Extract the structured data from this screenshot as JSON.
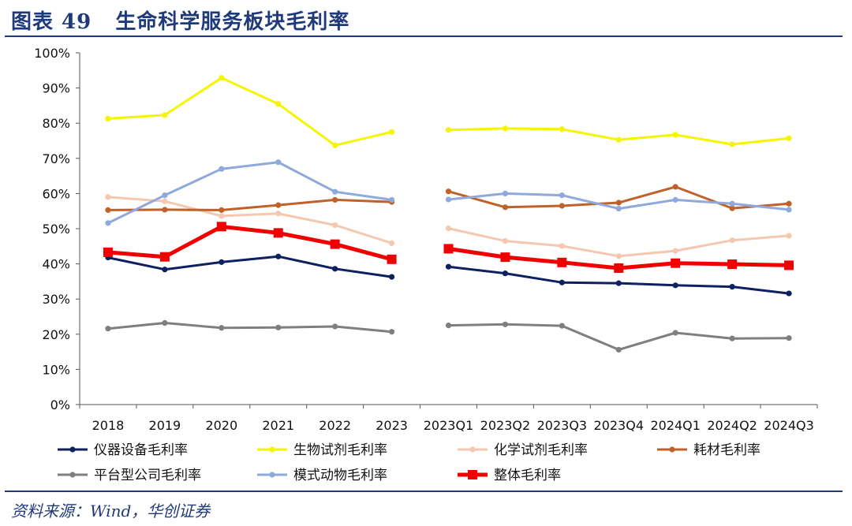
{
  "header": {
    "title": "图表 49   生命科学服务板块毛利率"
  },
  "footer": {
    "source": "资料来源：Wind，华创证券"
  },
  "colors": {
    "title": "#1f3a7a",
    "axis": "#555555",
    "text": "#111111"
  },
  "chart_data": {
    "type": "line",
    "title": "",
    "xlabel": "",
    "ylabel": "",
    "categories": [
      "2018",
      "2019",
      "2020",
      "2021",
      "2022",
      "2023",
      "2023Q1",
      "2023Q2",
      "2023Q3",
      "2023Q4",
      "2024Q1",
      "2024Q2",
      "2024Q3"
    ],
    "ylim": [
      0,
      100
    ],
    "yticks": [
      0,
      10,
      20,
      30,
      40,
      50,
      60,
      70,
      80,
      90,
      100
    ],
    "ytick_labels": [
      "0%",
      "10%",
      "20%",
      "30%",
      "40%",
      "50%",
      "60%",
      "70%",
      "80%",
      "90%",
      "100%"
    ],
    "y_unit": "%",
    "grid": false,
    "legend_position": "bottom",
    "series_gap_after_category": "2023",
    "series": [
      {
        "name": "仪器设备毛利率",
        "color": "#0d2060",
        "marker": "circle",
        "emphasis": false,
        "values": [
          41.8,
          38.4,
          40.5,
          42.1,
          38.6,
          36.3,
          39.2,
          37.3,
          34.7,
          34.5,
          33.9,
          33.5,
          31.6
        ]
      },
      {
        "name": "生物试剂毛利率",
        "color": "#f5f500",
        "marker": "circle",
        "emphasis": false,
        "values": [
          81.3,
          82.3,
          92.9,
          85.5,
          73.7,
          77.5,
          78.1,
          78.5,
          78.3,
          75.3,
          76.7,
          74.0,
          75.7
        ]
      },
      {
        "name": "化学试剂毛利率",
        "color": "#f4c7ae",
        "marker": "circle",
        "emphasis": false,
        "values": [
          59.0,
          57.8,
          53.6,
          54.3,
          51.0,
          45.9,
          50.1,
          46.5,
          45.1,
          42.2,
          43.7,
          46.7,
          48.0
        ]
      },
      {
        "name": "耗材毛利率",
        "color": "#c0612a",
        "marker": "circle",
        "emphasis": false,
        "values": [
          55.3,
          55.4,
          55.3,
          56.7,
          58.2,
          57.6,
          60.6,
          56.1,
          56.5,
          57.4,
          61.9,
          55.8,
          57.1
        ]
      },
      {
        "name": "平台型公司毛利率",
        "color": "#7f7f7f",
        "marker": "circle",
        "emphasis": false,
        "values": [
          21.6,
          23.2,
          21.8,
          21.9,
          22.2,
          20.7,
          22.5,
          22.8,
          22.4,
          15.6,
          20.4,
          18.8,
          18.9
        ]
      },
      {
        "name": "模式动物毛利率",
        "color": "#8fa9dc",
        "marker": "circle",
        "emphasis": false,
        "values": [
          51.6,
          59.5,
          67.0,
          68.9,
          60.5,
          58.2,
          58.3,
          60.0,
          59.5,
          55.7,
          58.2,
          57.1,
          55.4
        ]
      },
      {
        "name": "整体毛利率",
        "color": "#f00000",
        "marker": "square",
        "emphasis": true,
        "values": [
          43.3,
          42.0,
          50.6,
          48.8,
          45.6,
          41.3,
          44.3,
          41.9,
          40.4,
          38.8,
          40.2,
          39.9,
          39.6
        ]
      }
    ]
  }
}
